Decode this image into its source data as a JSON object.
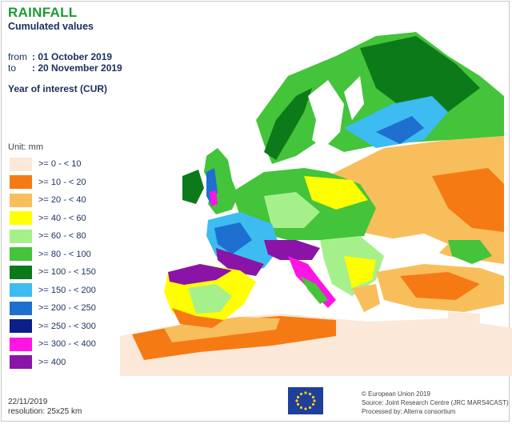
{
  "header": {
    "title": "RAINFALL",
    "subtitle": "Cumulated values",
    "from_label": "from",
    "from_value": ": 01 October 2019",
    "to_label": "to",
    "to_value": ": 20 November 2019",
    "year_of_interest": "Year of interest (CUR)"
  },
  "legend": {
    "unit": "Unit:  mm",
    "classes": [
      {
        "label": ">= 0 - < 10",
        "color": "#fbe8d8"
      },
      {
        "label": ">= 10 - < 20",
        "color": "#f57a14"
      },
      {
        "label": ">= 20 - < 40",
        "color": "#f9be5c"
      },
      {
        "label": ">= 40 - < 60",
        "color": "#ffff00"
      },
      {
        "label": ">= 60 - < 80",
        "color": "#a6f08c"
      },
      {
        "label": ">= 80 - < 100",
        "color": "#43c43a"
      },
      {
        "label": ">= 100 - < 150",
        "color": "#0d7a1a"
      },
      {
        "label": ">= 150 - < 200",
        "color": "#3cbcf0"
      },
      {
        "label": ">= 200 - < 250",
        "color": "#1f6fd0"
      },
      {
        "label": ">= 250 - < 300",
        "color": "#0a1f88"
      },
      {
        "label": ">= 300 - < 400",
        "color": "#ff14e6"
      },
      {
        "label": ">= 400",
        "color": "#8a14a8"
      }
    ]
  },
  "footer": {
    "date": "22/11/2019",
    "resolution": "resolution:  25x25 km",
    "copyright": "© European Union 2019",
    "source": "Source: Joint Research Centre (JRC MARS4CAST)",
    "processed": "Processed by: Alterra consortium"
  },
  "colors": {
    "sea": "#ffffff",
    "title": "#1a9a33",
    "text": "#1b2f5c",
    "eu_blue": "#1f3f9c",
    "eu_gold": "#ffd200"
  }
}
